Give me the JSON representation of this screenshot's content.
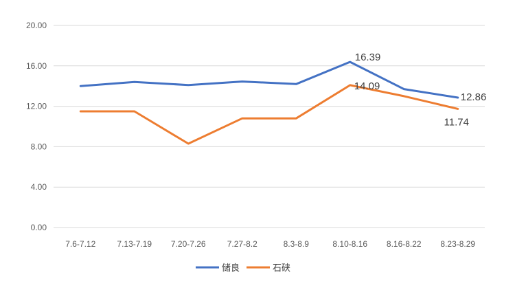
{
  "chart_data": {
    "type": "line",
    "title": "",
    "xlabel": "",
    "ylabel": "",
    "categories": [
      "7.6-7.12",
      "7.13-7.19",
      "7.20-7.26",
      "7.27-8.2",
      "8.3-8.9",
      "8.10-8.16",
      "8.16-8.22",
      "8.23-8.29"
    ],
    "ylim": [
      0,
      20
    ],
    "yticks": [
      "0.00",
      "4.00",
      "8.00",
      "12.00",
      "16.00",
      "20.00"
    ],
    "grid": true,
    "legend_position": "bottom",
    "series": [
      {
        "name": "储良",
        "color": "#4472C4",
        "values": [
          14.0,
          14.4,
          14.1,
          14.45,
          14.2,
          16.39,
          13.7,
          12.86
        ],
        "labels": [
          {
            "index": 5,
            "text": "16.39"
          },
          {
            "index": 7,
            "text": "12.86"
          }
        ]
      },
      {
        "name": "石硖",
        "color": "#ED7D31",
        "values": [
          11.5,
          11.5,
          8.3,
          10.8,
          10.8,
          14.09,
          13.0,
          11.74
        ],
        "labels": [
          {
            "index": 5,
            "text": "14.09"
          },
          {
            "index": 7,
            "text": "11.74"
          }
        ]
      }
    ]
  }
}
